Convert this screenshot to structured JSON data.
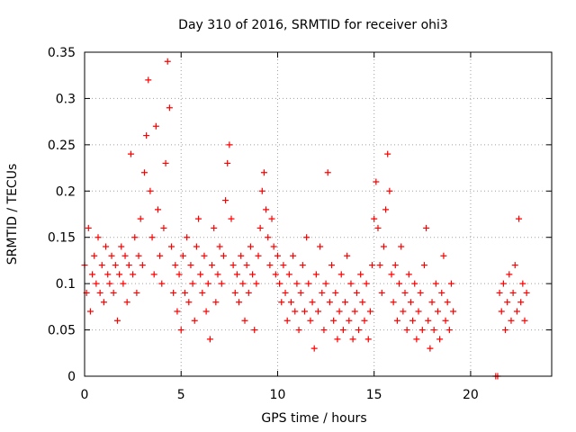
{
  "chart_data": {
    "type": "scatter",
    "title": "Day 310 of 2016, SRMTID for receiver ohi3",
    "xlabel": "GPS time / hours",
    "ylabel": "SRMTID / TECUs",
    "xlim": [
      0,
      24.2
    ],
    "ylim": [
      0,
      0.35
    ],
    "xticks": [
      0,
      5,
      10,
      15,
      20
    ],
    "xtick_labels": [
      "0",
      "5",
      "10",
      "15",
      "20"
    ],
    "yticks": [
      0,
      0.05,
      0.1,
      0.15,
      0.2,
      0.25,
      0.3,
      0.35
    ],
    "ytick_labels": [
      "0",
      "0.05",
      "0.1",
      "0.15",
      "0.2",
      "0.25",
      "0.3",
      "0.35"
    ],
    "grid": true,
    "marker": "+",
    "color": "#ff0000",
    "series": [
      {
        "name": "SRMTID",
        "points": [
          [
            0.0,
            0.12
          ],
          [
            0.1,
            0.09
          ],
          [
            0.2,
            0.16
          ],
          [
            0.3,
            0.07
          ],
          [
            0.4,
            0.11
          ],
          [
            0.5,
            0.13
          ],
          [
            0.6,
            0.1
          ],
          [
            0.7,
            0.15
          ],
          [
            0.8,
            0.09
          ],
          [
            0.9,
            0.12
          ],
          [
            1.0,
            0.08
          ],
          [
            1.1,
            0.14
          ],
          [
            1.2,
            0.11
          ],
          [
            1.3,
            0.1
          ],
          [
            1.4,
            0.13
          ],
          [
            1.5,
            0.09
          ],
          [
            1.6,
            0.12
          ],
          [
            1.7,
            0.06
          ],
          [
            1.8,
            0.11
          ],
          [
            1.9,
            0.14
          ],
          [
            2.0,
            0.1
          ],
          [
            2.1,
            0.13
          ],
          [
            2.2,
            0.08
          ],
          [
            2.3,
            0.12
          ],
          [
            2.4,
            0.24
          ],
          [
            2.5,
            0.11
          ],
          [
            2.6,
            0.15
          ],
          [
            2.7,
            0.09
          ],
          [
            2.8,
            0.13
          ],
          [
            2.9,
            0.17
          ],
          [
            3.0,
            0.12
          ],
          [
            3.1,
            0.22
          ],
          [
            3.2,
            0.26
          ],
          [
            3.3,
            0.32
          ],
          [
            3.4,
            0.2
          ],
          [
            3.5,
            0.15
          ],
          [
            3.6,
            0.11
          ],
          [
            3.7,
            0.27
          ],
          [
            3.8,
            0.18
          ],
          [
            3.9,
            0.13
          ],
          [
            4.0,
            0.1
          ],
          [
            4.1,
            0.16
          ],
          [
            4.2,
            0.23
          ],
          [
            4.3,
            0.34
          ],
          [
            4.4,
            0.29
          ],
          [
            4.5,
            0.14
          ],
          [
            4.6,
            0.09
          ],
          [
            4.7,
            0.12
          ],
          [
            4.8,
            0.07
          ],
          [
            4.9,
            0.11
          ],
          [
            5.0,
            0.05
          ],
          [
            5.1,
            0.13
          ],
          [
            5.2,
            0.09
          ],
          [
            5.3,
            0.15
          ],
          [
            5.4,
            0.08
          ],
          [
            5.5,
            0.12
          ],
          [
            5.6,
            0.1
          ],
          [
            5.7,
            0.06
          ],
          [
            5.8,
            0.14
          ],
          [
            5.9,
            0.17
          ],
          [
            6.0,
            0.11
          ],
          [
            6.1,
            0.09
          ],
          [
            6.2,
            0.13
          ],
          [
            6.3,
            0.07
          ],
          [
            6.4,
            0.1
          ],
          [
            6.5,
            0.04
          ],
          [
            6.6,
            0.12
          ],
          [
            6.7,
            0.16
          ],
          [
            6.8,
            0.08
          ],
          [
            6.9,
            0.11
          ],
          [
            7.0,
            0.14
          ],
          [
            7.1,
            0.1
          ],
          [
            7.2,
            0.13
          ],
          [
            7.3,
            0.19
          ],
          [
            7.4,
            0.23
          ],
          [
            7.5,
            0.25
          ],
          [
            7.6,
            0.17
          ],
          [
            7.7,
            0.12
          ],
          [
            7.8,
            0.09
          ],
          [
            7.9,
            0.11
          ],
          [
            8.0,
            0.08
          ],
          [
            8.1,
            0.13
          ],
          [
            8.2,
            0.1
          ],
          [
            8.3,
            0.06
          ],
          [
            8.4,
            0.12
          ],
          [
            8.5,
            0.09
          ],
          [
            8.6,
            0.14
          ],
          [
            8.7,
            0.11
          ],
          [
            8.8,
            0.05
          ],
          [
            8.9,
            0.1
          ],
          [
            9.0,
            0.13
          ],
          [
            9.1,
            0.16
          ],
          [
            9.2,
            0.2
          ],
          [
            9.3,
            0.22
          ],
          [
            9.4,
            0.18
          ],
          [
            9.5,
            0.15
          ],
          [
            9.6,
            0.12
          ],
          [
            9.7,
            0.17
          ],
          [
            9.8,
            0.14
          ],
          [
            9.9,
            0.11
          ],
          [
            10.0,
            0.13
          ],
          [
            10.1,
            0.1
          ],
          [
            10.2,
            0.08
          ],
          [
            10.3,
            0.12
          ],
          [
            10.4,
            0.09
          ],
          [
            10.5,
            0.06
          ],
          [
            10.6,
            0.11
          ],
          [
            10.7,
            0.08
          ],
          [
            10.8,
            0.13
          ],
          [
            10.9,
            0.07
          ],
          [
            11.0,
            0.1
          ],
          [
            11.1,
            0.05
          ],
          [
            11.2,
            0.09
          ],
          [
            11.3,
            0.12
          ],
          [
            11.4,
            0.07
          ],
          [
            11.5,
            0.15
          ],
          [
            11.6,
            0.1
          ],
          [
            11.7,
            0.06
          ],
          [
            11.8,
            0.08
          ],
          [
            11.9,
            0.03
          ],
          [
            12.0,
            0.11
          ],
          [
            12.1,
            0.07
          ],
          [
            12.2,
            0.14
          ],
          [
            12.3,
            0.09
          ],
          [
            12.4,
            0.05
          ],
          [
            12.5,
            0.1
          ],
          [
            12.6,
            0.22
          ],
          [
            12.7,
            0.08
          ],
          [
            12.8,
            0.12
          ],
          [
            12.9,
            0.06
          ],
          [
            13.0,
            0.09
          ],
          [
            13.1,
            0.04
          ],
          [
            13.2,
            0.07
          ],
          [
            13.3,
            0.11
          ],
          [
            13.4,
            0.05
          ],
          [
            13.5,
            0.08
          ],
          [
            13.6,
            0.13
          ],
          [
            13.7,
            0.06
          ],
          [
            13.8,
            0.1
          ],
          [
            13.9,
            0.04
          ],
          [
            14.0,
            0.07
          ],
          [
            14.1,
            0.09
          ],
          [
            14.2,
            0.05
          ],
          [
            14.3,
            0.11
          ],
          [
            14.4,
            0.08
          ],
          [
            14.5,
            0.06
          ],
          [
            14.6,
            0.1
          ],
          [
            14.7,
            0.04
          ],
          [
            14.8,
            0.07
          ],
          [
            14.9,
            0.12
          ],
          [
            15.0,
            0.17
          ],
          [
            15.1,
            0.21
          ],
          [
            15.2,
            0.16
          ],
          [
            15.3,
            0.12
          ],
          [
            15.4,
            0.09
          ],
          [
            15.5,
            0.14
          ],
          [
            15.6,
            0.18
          ],
          [
            15.7,
            0.24
          ],
          [
            15.8,
            0.2
          ],
          [
            15.9,
            0.11
          ],
          [
            16.0,
            0.08
          ],
          [
            16.1,
            0.12
          ],
          [
            16.2,
            0.06
          ],
          [
            16.3,
            0.1
          ],
          [
            16.4,
            0.14
          ],
          [
            16.5,
            0.07
          ],
          [
            16.6,
            0.09
          ],
          [
            16.7,
            0.05
          ],
          [
            16.8,
            0.11
          ],
          [
            16.9,
            0.08
          ],
          [
            17.0,
            0.06
          ],
          [
            17.1,
            0.1
          ],
          [
            17.2,
            0.04
          ],
          [
            17.3,
            0.07
          ],
          [
            17.4,
            0.09
          ],
          [
            17.5,
            0.05
          ],
          [
            17.6,
            0.12
          ],
          [
            17.7,
            0.16
          ],
          [
            17.8,
            0.06
          ],
          [
            17.9,
            0.03
          ],
          [
            18.0,
            0.08
          ],
          [
            18.1,
            0.05
          ],
          [
            18.2,
            0.1
          ],
          [
            18.3,
            0.07
          ],
          [
            18.4,
            0.04
          ],
          [
            18.5,
            0.09
          ],
          [
            18.6,
            0.13
          ],
          [
            18.7,
            0.06
          ],
          [
            18.8,
            0.08
          ],
          [
            18.9,
            0.05
          ],
          [
            19.0,
            0.1
          ],
          [
            19.1,
            0.07
          ],
          [
            21.3,
            0.0
          ],
          [
            21.4,
            0.0
          ],
          [
            21.5,
            0.09
          ],
          [
            21.6,
            0.07
          ],
          [
            21.7,
            0.1
          ],
          [
            21.8,
            0.05
          ],
          [
            21.9,
            0.08
          ],
          [
            22.0,
            0.11
          ],
          [
            22.1,
            0.06
          ],
          [
            22.2,
            0.09
          ],
          [
            22.3,
            0.12
          ],
          [
            22.4,
            0.07
          ],
          [
            22.5,
            0.17
          ],
          [
            22.6,
            0.08
          ],
          [
            22.7,
            0.1
          ],
          [
            22.8,
            0.06
          ],
          [
            22.9,
            0.09
          ]
        ]
      }
    ]
  }
}
